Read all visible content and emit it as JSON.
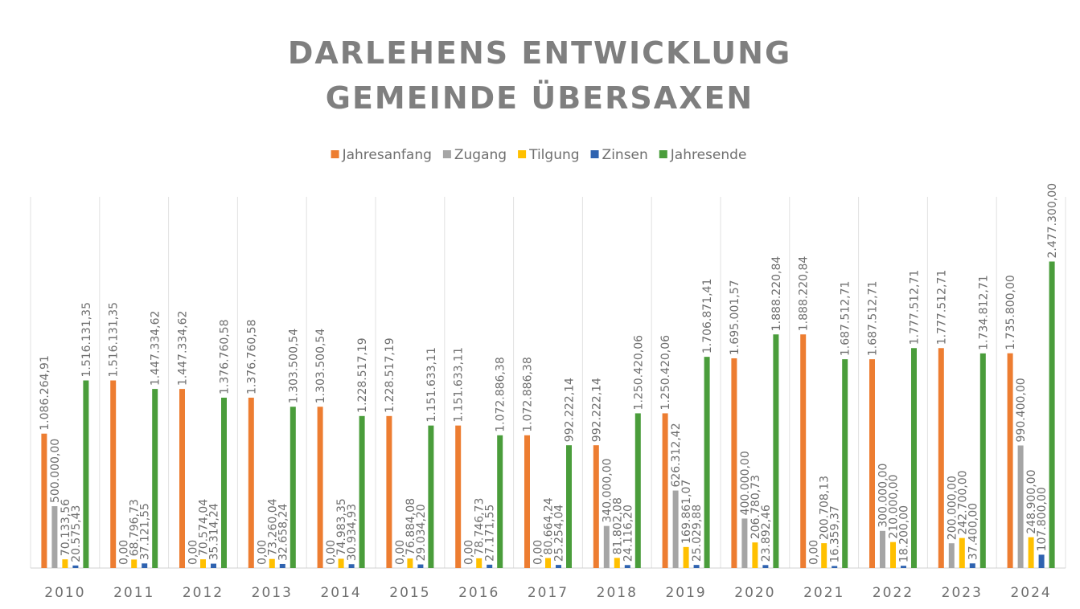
{
  "chart_data": {
    "type": "bar",
    "title": "DARLEHENS ENTWICKLUNG GEMEINDE ÜBERSAXEN",
    "categories": [
      "2010",
      "2011",
      "2012",
      "2013",
      "2014",
      "2015",
      "2016",
      "2017",
      "2018",
      "2019",
      "2020",
      "2021",
      "2022",
      "2023",
      "2024"
    ],
    "ylim": [
      0,
      3000000
    ],
    "legend": "top",
    "series": [
      {
        "name": "Jahresanfang",
        "color": "#ed7d31",
        "values": [
          1086264.91,
          1516131.35,
          1447334.62,
          1376760.58,
          1303500.54,
          1228517.19,
          1151633.11,
          1072886.38,
          992222.14,
          1250420.06,
          1695001.57,
          1888220.84,
          1687512.71,
          1777512.71,
          1735800.0
        ],
        "value_labels": [
          "1.086.264,91",
          "1.516.131,35",
          "1.447.334,62",
          "1.376.760,58",
          "1.303.500,54",
          "1.228.517,19",
          "1.151.633,11",
          "1.072.886,38",
          "992.222,14",
          "1.250.420,06",
          "1.695.001,57",
          "1.888.220,84",
          "1.687.512,71",
          "1.777.512,71",
          "1.735.800,00"
        ]
      },
      {
        "name": "Zugang",
        "color": "#a5a5a5",
        "values": [
          500000,
          0,
          0,
          0,
          0,
          0,
          0,
          0,
          340000,
          626312.42,
          400000,
          0,
          300000,
          200000,
          990400
        ],
        "value_labels": [
          "500.000,00",
          "0,00",
          "0,00",
          "0,00",
          "0,00",
          "0,00",
          "0,00",
          "0,00",
          "340.000,00",
          "626.312,42",
          "400.000,00",
          "0,00",
          "300.000,00",
          "200.000,00",
          "990.400,00"
        ]
      },
      {
        "name": "Tilgung",
        "color": "#ffc000",
        "values": [
          70133.56,
          68796.73,
          70574.04,
          73260.04,
          74983.35,
          76884.08,
          78746.73,
          80664.24,
          81802.08,
          169861.07,
          206780.73,
          200708.13,
          210000,
          242700,
          248900
        ],
        "value_labels": [
          "70.133,56",
          "68.796,73",
          "70.574,04",
          "73.260,04",
          "74.983,35",
          "76.884,08",
          "78.746,73",
          "80.664,24",
          "81.802,08",
          "169.861,07",
          "206.780,73",
          "200.708,13",
          "210.000,00",
          "242.700,00",
          "248.900,00"
        ]
      },
      {
        "name": "Zinsen",
        "color": "#2f63b0",
        "values": [
          20575.43,
          37121.55,
          35314.24,
          32658.24,
          30934.93,
          29034.2,
          27171.55,
          25254.04,
          24116.2,
          25029.88,
          23892.46,
          16359.37,
          18200,
          37400,
          107800
        ],
        "value_labels": [
          "20.575,43",
          "37.121,55",
          "35.314,24",
          "32.658,24",
          "30.934,93",
          "29.034,20",
          "27.171,55",
          "25.254,04",
          "24.116,20",
          "25.029,88",
          "23.892,46",
          "16.359,37",
          "18.200,00",
          "37.400,00",
          "107.800,00"
        ]
      },
      {
        "name": "Jahresende",
        "color": "#4a9d3b",
        "values": [
          1516131.35,
          1447334.62,
          1376760.58,
          1303500.54,
          1228517.19,
          1151633.11,
          1072886.38,
          992222.14,
          1250420.06,
          1706871.41,
          1888220.84,
          1687512.71,
          1777512.71,
          1734812.71,
          2477300.0
        ],
        "value_labels": [
          "1.516.131,35",
          "1.447.334,62",
          "1.376.760,58",
          "1.303.500,54",
          "1.228.517,19",
          "1.151.633,11",
          "1.072.886,38",
          "992.222,14",
          "1.250.420,06",
          "1.706.871,41",
          "1.888.220,84",
          "1.687.512,71",
          "1.777.512,71",
          "1.734.812,71",
          "2.477.300,00"
        ]
      }
    ]
  }
}
